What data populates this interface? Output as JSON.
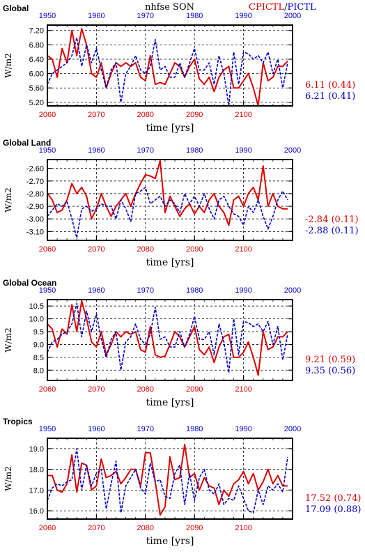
{
  "header": {
    "variable": "nhfse SON",
    "run_a": "CPICTL",
    "separator": "/",
    "run_b": "PICTL"
  },
  "colors": {
    "run_a": "#dd0000",
    "run_b": "#0000cc",
    "grid": "#000000"
  },
  "chart_data": [
    {
      "type": "line",
      "title": "Global",
      "ylabel": "W/m2",
      "xlabel": "time [yrs]",
      "ylim": [
        5.1,
        7.35
      ],
      "yticks": [
        "5.20",
        "5.60",
        "6.00",
        "6.40",
        "6.80",
        "7.20"
      ],
      "xlim_bottom": [
        2060,
        2110
      ],
      "xlim_top": [
        1950,
        2000
      ],
      "xticks_bottom": [
        "2060",
        "2070",
        "2080",
        "2090",
        "2100"
      ],
      "xticks_top": [
        "1950",
        "1960",
        "1970",
        "1980",
        "1990",
        "2000"
      ],
      "series": [
        {
          "name": "CPICTL",
          "stat": "6.11 (0.44)",
          "x": [
            2060,
            2061,
            2062,
            2063,
            2064,
            2065,
            2066,
            2067,
            2068,
            2069,
            2070,
            2071,
            2072,
            2073,
            2074,
            2075,
            2076,
            2077,
            2078,
            2079,
            2080,
            2081,
            2082,
            2083,
            2084,
            2085,
            2086,
            2087,
            2088,
            2089,
            2090,
            2091,
            2092,
            2093,
            2094,
            2095,
            2096,
            2097,
            2098,
            2099,
            2100,
            2101,
            2102,
            2103,
            2104,
            2105,
            2106,
            2107,
            2108,
            2109
          ],
          "values": [
            6.5,
            6.4,
            5.9,
            6.7,
            6.3,
            7.2,
            6.5,
            7.25,
            6.8,
            6.0,
            5.9,
            6.3,
            5.6,
            6.0,
            6.3,
            6.2,
            6.3,
            6.2,
            6.3,
            5.9,
            5.8,
            6.5,
            5.7,
            5.75,
            5.7,
            6.0,
            6.3,
            6.2,
            5.9,
            6.2,
            6.4,
            5.85,
            5.7,
            5.9,
            5.5,
            5.9,
            6.1,
            6.2,
            5.6,
            5.6,
            5.8,
            6.0,
            5.6,
            5.1,
            6.3,
            5.8,
            5.9,
            6.2,
            6.2,
            6.35
          ]
        },
        {
          "name": "PICTL",
          "stat": "6.21 (0.41)",
          "x": [
            1950,
            1951,
            1952,
            1953,
            1954,
            1955,
            1956,
            1957,
            1958,
            1959,
            1960,
            1961,
            1962,
            1963,
            1964,
            1965,
            1966,
            1967,
            1968,
            1969,
            1970,
            1971,
            1972,
            1973,
            1974,
            1975,
            1976,
            1977,
            1978,
            1979,
            1980,
            1981,
            1982,
            1983,
            1984,
            1985,
            1986,
            1987,
            1988,
            1989,
            1990,
            1991,
            1992,
            1993,
            1994,
            1995,
            1996,
            1997,
            1998,
            1999
          ],
          "values": [
            5.7,
            6.0,
            6.1,
            6.2,
            6.3,
            6.5,
            7.0,
            6.2,
            6.8,
            6.3,
            6.7,
            6.1,
            5.6,
            6.1,
            6.3,
            5.2,
            6.0,
            6.2,
            6.5,
            6.1,
            6.0,
            6.2,
            6.95,
            6.1,
            6.2,
            5.9,
            5.9,
            6.3,
            5.9,
            6.3,
            6.7,
            6.1,
            6.1,
            6.3,
            5.7,
            6.5,
            6.0,
            5.1,
            6.6,
            5.7,
            6.6,
            6.55,
            6.4,
            6.5,
            6.3,
            6.6,
            6.0,
            6.4,
            5.6,
            6.3
          ]
        }
      ]
    },
    {
      "type": "line",
      "title": "Global Land",
      "ylabel": "W/m2",
      "xlabel": "time [yrs]",
      "ylim": [
        -3.17,
        -2.53
      ],
      "yticks": [
        "-3.10",
        "-3.00",
        "-2.90",
        "-2.80",
        "-2.70",
        "-2.60"
      ],
      "xlim_bottom": [
        2060,
        2110
      ],
      "xlim_top": [
        1950,
        2000
      ],
      "xticks_bottom": [
        "2060",
        "2070",
        "2080",
        "2090",
        "2100"
      ],
      "xticks_top": [
        "1950",
        "1960",
        "1970",
        "1980",
        "1990",
        "2000"
      ],
      "series": [
        {
          "name": "CPICTL",
          "stat": "-2.84 (0.11)",
          "x": [
            2060,
            2061,
            2062,
            2063,
            2064,
            2065,
            2066,
            2067,
            2068,
            2069,
            2070,
            2071,
            2072,
            2073,
            2074,
            2075,
            2076,
            2077,
            2078,
            2079,
            2080,
            2081,
            2082,
            2083,
            2084,
            2085,
            2086,
            2087,
            2088,
            2089,
            2090,
            2091,
            2092,
            2093,
            2094,
            2095,
            2096,
            2097,
            2098,
            2099,
            2100,
            2101,
            2102,
            2103,
            2104,
            2105,
            2106,
            2107,
            2108,
            2109
          ],
          "values": [
            -2.8,
            -2.85,
            -2.95,
            -2.93,
            -2.85,
            -2.72,
            -2.8,
            -2.75,
            -2.82,
            -3.0,
            -2.92,
            -2.8,
            -2.9,
            -2.98,
            -2.9,
            -2.85,
            -2.8,
            -2.9,
            -2.8,
            -2.72,
            -2.65,
            -2.66,
            -2.68,
            -2.54,
            -2.95,
            -2.82,
            -2.9,
            -2.98,
            -2.92,
            -2.88,
            -2.96,
            -2.9,
            -2.95,
            -2.85,
            -2.8,
            -2.9,
            -2.95,
            -3.05,
            -2.85,
            -2.82,
            -2.9,
            -2.8,
            -2.75,
            -2.85,
            -2.58,
            -2.9,
            -2.8,
            -2.9,
            -2.92,
            -2.92
          ]
        },
        {
          "name": "PICTL",
          "stat": "-2.88 (0.11)",
          "x": [
            1950,
            1951,
            1952,
            1953,
            1954,
            1955,
            1956,
            1957,
            1958,
            1959,
            1960,
            1961,
            1962,
            1963,
            1964,
            1965,
            1966,
            1967,
            1968,
            1969,
            1970,
            1971,
            1972,
            1973,
            1974,
            1975,
            1976,
            1977,
            1978,
            1979,
            1980,
            1981,
            1982,
            1983,
            1984,
            1985,
            1986,
            1987,
            1988,
            1989,
            1990,
            1991,
            1992,
            1993,
            1994,
            1995,
            1996,
            1997,
            1998,
            1999
          ],
          "values": [
            -2.98,
            -2.93,
            -2.88,
            -2.9,
            -2.86,
            -3.0,
            -3.15,
            -2.92,
            -2.9,
            -2.94,
            -2.92,
            -2.88,
            -2.9,
            -2.9,
            -3.0,
            -2.85,
            -2.92,
            -3.02,
            -2.8,
            -2.78,
            -2.75,
            -2.88,
            -2.85,
            -2.82,
            -2.9,
            -2.85,
            -2.88,
            -2.95,
            -2.8,
            -2.88,
            -2.82,
            -2.9,
            -2.8,
            -2.92,
            -3.0,
            -2.85,
            -2.82,
            -2.9,
            -2.96,
            -2.98,
            -3.05,
            -2.9,
            -2.95,
            -2.85,
            -2.98,
            -3.08,
            -2.98,
            -2.85,
            -2.78,
            -2.85
          ]
        }
      ]
    },
    {
      "type": "line",
      "title": "Global Ocean",
      "ylabel": "W/m2",
      "xlabel": "time [yrs]",
      "ylim": [
        7.6,
        10.75
      ],
      "yticks": [
        "8.0",
        "8.5",
        "9.0",
        "9.5",
        "10.0",
        "10.5"
      ],
      "xlim_bottom": [
        2060,
        2110
      ],
      "xlim_top": [
        1950,
        2000
      ],
      "xticks_bottom": [
        "2060",
        "2070",
        "2080",
        "2090",
        "2100"
      ],
      "xticks_top": [
        "1950",
        "1960",
        "1970",
        "1980",
        "1990",
        "2000"
      ],
      "series": [
        {
          "name": "CPICTL",
          "stat": "9.21 (0.59)",
          "x": [
            2060,
            2061,
            2062,
            2063,
            2064,
            2065,
            2066,
            2067,
            2068,
            2069,
            2070,
            2071,
            2072,
            2073,
            2074,
            2075,
            2076,
            2077,
            2078,
            2079,
            2080,
            2081,
            2082,
            2083,
            2084,
            2085,
            2086,
            2087,
            2088,
            2089,
            2090,
            2091,
            2092,
            2093,
            2094,
            2095,
            2096,
            2097,
            2098,
            2099,
            2100,
            2101,
            2102,
            2103,
            2104,
            2105,
            2106,
            2107,
            2108,
            2109
          ],
          "values": [
            9.8,
            9.6,
            8.9,
            9.6,
            9.4,
            10.55,
            9.5,
            10.7,
            10.0,
            9.1,
            8.9,
            9.5,
            8.6,
            9.0,
            9.5,
            9.3,
            9.5,
            9.4,
            9.5,
            8.8,
            8.7,
            9.7,
            8.6,
            8.5,
            8.55,
            9.0,
            9.5,
            9.3,
            8.9,
            9.3,
            9.7,
            8.8,
            8.6,
            8.9,
            8.3,
            8.9,
            9.3,
            9.4,
            8.5,
            8.5,
            8.7,
            9.1,
            8.5,
            7.8,
            9.5,
            8.8,
            8.9,
            9.3,
            9.3,
            9.5
          ]
        },
        {
          "name": "PICTL",
          "stat": "9.35 (0.56)",
          "x": [
            1950,
            1951,
            1952,
            1953,
            1954,
            1955,
            1956,
            1957,
            1958,
            1959,
            1960,
            1961,
            1962,
            1963,
            1964,
            1965,
            1966,
            1967,
            1968,
            1969,
            1970,
            1971,
            1972,
            1973,
            1974,
            1975,
            1976,
            1977,
            1978,
            1979,
            1980,
            1981,
            1982,
            1983,
            1984,
            1985,
            1986,
            1987,
            1988,
            1989,
            1990,
            1991,
            1992,
            1993,
            1994,
            1995,
            1996,
            1997,
            1998,
            1999
          ],
          "values": [
            8.7,
            9.1,
            9.2,
            9.4,
            9.5,
            9.8,
            10.6,
            9.3,
            10.3,
            9.5,
            10.2,
            9.2,
            8.5,
            9.2,
            9.5,
            8.0,
            9.1,
            9.3,
            9.8,
            9.2,
            9.0,
            9.4,
            10.45,
            9.2,
            9.3,
            8.9,
            8.9,
            9.5,
            8.9,
            9.4,
            10.1,
            9.2,
            9.2,
            9.5,
            8.6,
            9.8,
            9.1,
            7.9,
            10.0,
            8.6,
            9.9,
            9.85,
            9.7,
            9.8,
            9.5,
            9.9,
            9.0,
            9.7,
            8.4,
            9.4
          ]
        }
      ]
    },
    {
      "type": "line",
      "title": "Tropics",
      "ylabel": "W/m2",
      "xlabel": "time [yrs]",
      "ylim": [
        15.6,
        19.5
      ],
      "yticks": [
        "16.0",
        "17.0",
        "18.0",
        "19.0"
      ],
      "xlim_bottom": [
        2060,
        2110
      ],
      "xlim_top": [
        1950,
        2000
      ],
      "xticks_bottom": [
        "2060",
        "2070",
        "2080",
        "2090",
        "2100"
      ],
      "xticks_top": [
        "1950",
        "1960",
        "1970",
        "1980",
        "1990",
        "2000"
      ],
      "series": [
        {
          "name": "CPICTL",
          "stat": "17.52 (0.74)",
          "x": [
            2060,
            2061,
            2062,
            2063,
            2064,
            2065,
            2066,
            2067,
            2068,
            2069,
            2070,
            2071,
            2072,
            2073,
            2074,
            2075,
            2076,
            2077,
            2078,
            2079,
            2080,
            2081,
            2082,
            2083,
            2084,
            2085,
            2086,
            2087,
            2088,
            2089,
            2090,
            2091,
            2092,
            2093,
            2094,
            2095,
            2096,
            2097,
            2098,
            2099,
            2100,
            2101,
            2102,
            2103,
            2104,
            2105,
            2106,
            2107,
            2108,
            2109
          ],
          "values": [
            17.7,
            17.7,
            17.0,
            16.9,
            17.3,
            18.7,
            16.9,
            18.3,
            18.2,
            17.0,
            17.2,
            18.5,
            17.6,
            17.7,
            17.9,
            17.3,
            17.6,
            18.0,
            18.0,
            17.2,
            18.8,
            18.8,
            17.4,
            15.8,
            16.2,
            18.6,
            17.5,
            17.6,
            19.2,
            17.6,
            17.8,
            17.0,
            17.6,
            17.2,
            17.1,
            16.3,
            17.0,
            16.7,
            17.3,
            17.5,
            17.9,
            17.3,
            17.8,
            17.0,
            17.4,
            18.0,
            17.3,
            17.7,
            17.2,
            17.2
          ]
        },
        {
          "name": "PICTL",
          "stat": "17.09 (0.88)",
          "x": [
            1950,
            1951,
            1952,
            1953,
            1954,
            1955,
            1956,
            1957,
            1958,
            1959,
            1960,
            1961,
            1962,
            1963,
            1964,
            1965,
            1966,
            1967,
            1968,
            1969,
            1970,
            1971,
            1972,
            1973,
            1974,
            1975,
            1976,
            1977,
            1978,
            1979,
            1980,
            1981,
            1982,
            1983,
            1984,
            1985,
            1986,
            1987,
            1988,
            1989,
            1990,
            1991,
            1992,
            1993,
            1994,
            1995,
            1996,
            1997,
            1998,
            1999
          ],
          "values": [
            16.5,
            17.1,
            17.3,
            17.2,
            17.4,
            17.5,
            19.0,
            17.0,
            18.2,
            17.2,
            17.8,
            18.0,
            16.1,
            17.3,
            18.4,
            15.9,
            17.2,
            17.6,
            18.0,
            17.1,
            16.8,
            18.3,
            17.4,
            17.5,
            16.7,
            16.6,
            17.8,
            18.2,
            16.3,
            17.8,
            16.5,
            17.6,
            18.0,
            17.0,
            16.8,
            17.3,
            16.3,
            16.6,
            16.5,
            17.2,
            16.6,
            16.0,
            15.9,
            17.0,
            16.3,
            17.2,
            17.0,
            17.3,
            16.9,
            18.6
          ]
        }
      ]
    }
  ]
}
